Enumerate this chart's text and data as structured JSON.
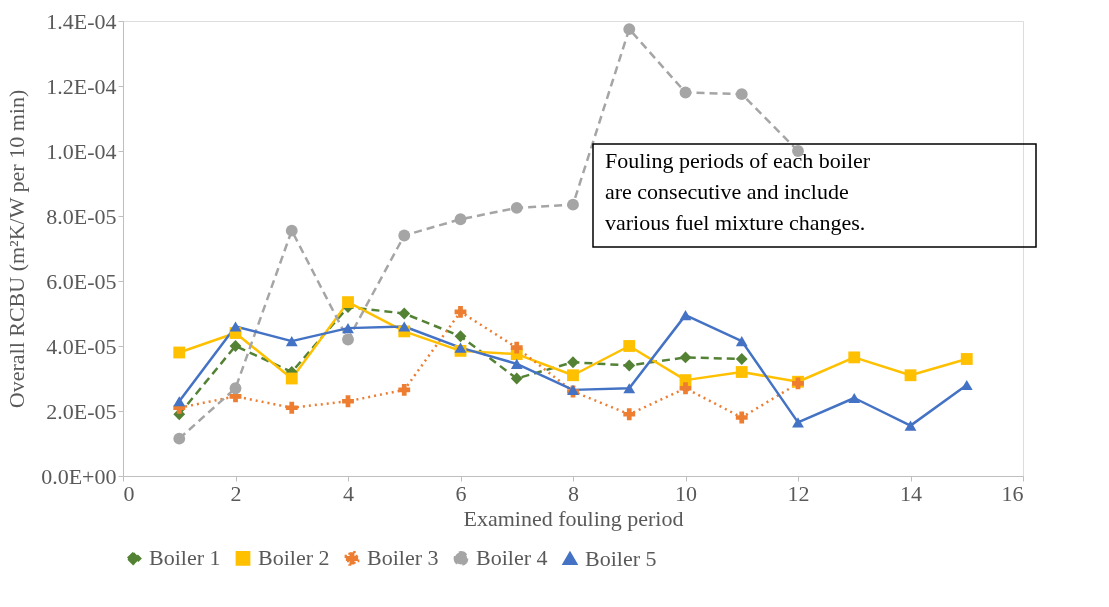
{
  "chart_data": {
    "type": "line",
    "xlabel": "Examined fouling period",
    "ylabel": "Overall RCBU (m²K/W per 10 min)",
    "x": [
      1,
      2,
      3,
      4,
      5,
      6,
      7,
      8,
      9,
      10,
      11,
      12,
      13,
      14,
      15
    ],
    "series": [
      {
        "name": "Boiler 1",
        "color": "#548235",
        "marker": "diamond",
        "line_style": "dashed",
        "values": [
          1.9e-05,
          4e-05,
          3.2e-05,
          5.2e-05,
          5e-05,
          4.3e-05,
          3e-05,
          3.5e-05,
          3.4e-05,
          3.65e-05,
          3.6e-05,
          null,
          null,
          null,
          null
        ]
      },
      {
        "name": "Boiler 2",
        "color": "#ffc000",
        "marker": "square",
        "line_style": "solid",
        "values": [
          3.8e-05,
          4.4e-05,
          3e-05,
          5.35e-05,
          4.45e-05,
          3.85e-05,
          3.75e-05,
          3.1e-05,
          4e-05,
          2.95e-05,
          3.2e-05,
          2.9e-05,
          3.65e-05,
          3.1e-05,
          3.6e-05
        ]
      },
      {
        "name": "Boiler 3",
        "color": "#ed7d31",
        "marker": "cross",
        "line_style": "dotted",
        "values": [
          2.1e-05,
          2.45e-05,
          2.1e-05,
          2.3e-05,
          2.65e-05,
          5.05e-05,
          3.95e-05,
          2.6e-05,
          1.9e-05,
          2.7e-05,
          1.8e-05,
          2.85e-05,
          null,
          null,
          null
        ]
      },
      {
        "name": "Boiler 4",
        "color": "#a5a5a5",
        "marker": "circle",
        "line_style": "dashed",
        "values": [
          1.15e-05,
          2.7e-05,
          7.55e-05,
          4.2e-05,
          7.4e-05,
          7.9e-05,
          8.25e-05,
          8.35e-05,
          0.0001375,
          0.000118,
          0.0001175,
          0.0001,
          null,
          null,
          null
        ]
      },
      {
        "name": "Boiler 5",
        "color": "#4472c4",
        "marker": "triangle",
        "line_style": "solid",
        "values": [
          2.3e-05,
          4.6e-05,
          4.15e-05,
          4.55e-05,
          4.6e-05,
          3.95e-05,
          3.45e-05,
          2.65e-05,
          2.7e-05,
          4.95e-05,
          4.15e-05,
          1.65e-05,
          2.4e-05,
          1.55e-05,
          2.8e-05
        ]
      }
    ],
    "xlim": [
      0,
      16
    ],
    "xticks": [
      0,
      2,
      4,
      6,
      8,
      10,
      12,
      14,
      16
    ],
    "ylim": [
      0,
      0.00014
    ],
    "yticks": [
      {
        "value": 0,
        "label": "0.0E+00"
      },
      {
        "value": 2e-05,
        "label": "2.0E-05"
      },
      {
        "value": 4e-05,
        "label": "4.0E-05"
      },
      {
        "value": 6e-05,
        "label": "6.0E-05"
      },
      {
        "value": 8e-05,
        "label": "8.0E-05"
      },
      {
        "value": 0.0001,
        "label": "1.0E-04"
      },
      {
        "value": 0.00012,
        "label": "1.2E-04"
      },
      {
        "value": 0.00014,
        "label": "1.4E-04"
      }
    ],
    "annotations": [
      "Fouling periods of each boiler\nare consecutive and include\nvarious fuel mixture changes."
    ],
    "grid": false,
    "legend": "bottom"
  }
}
